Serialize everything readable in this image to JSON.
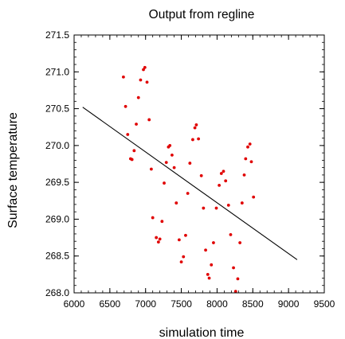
{
  "chart_data": {
    "type": "scatter",
    "title": "Output from regline",
    "xlabel": "simulation time",
    "ylabel": "Surface temperature",
    "xlim": [
      6000,
      9500
    ],
    "ylim": [
      268.0,
      271.5
    ],
    "x_ticks": [
      6000,
      6500,
      7000,
      7500,
      8000,
      8500,
      9000,
      9500
    ],
    "x_tick_labels": [
      "6000",
      "6500",
      "7000",
      "7500",
      "8000",
      "8500",
      "9000",
      "9500"
    ],
    "y_ticks": [
      268.0,
      268.5,
      269.0,
      269.5,
      270.0,
      270.5,
      271.0,
      271.5
    ],
    "y_tick_labels": [
      "268.0",
      "268.5",
      "269.0",
      "269.5",
      "270.0",
      "270.5",
      "271.0",
      "271.5"
    ],
    "grid": false,
    "marker_color": "#e00000",
    "line_color": "#000000",
    "points": [
      [
        6690,
        270.93
      ],
      [
        6720,
        270.53
      ],
      [
        6750,
        270.15
      ],
      [
        6790,
        269.82
      ],
      [
        6810,
        269.81
      ],
      [
        6840,
        269.93
      ],
      [
        6870,
        270.29
      ],
      [
        6900,
        270.65
      ],
      [
        6930,
        270.89
      ],
      [
        6970,
        271.03
      ],
      [
        6990,
        271.06
      ],
      [
        7020,
        270.86
      ],
      [
        7050,
        270.35
      ],
      [
        7080,
        269.68
      ],
      [
        7100,
        269.02
      ],
      [
        7150,
        268.75
      ],
      [
        7180,
        268.69
      ],
      [
        7200,
        268.73
      ],
      [
        7230,
        268.97
      ],
      [
        7260,
        269.49
      ],
      [
        7290,
        269.77
      ],
      [
        7320,
        269.98
      ],
      [
        7340,
        270.0
      ],
      [
        7370,
        269.87
      ],
      [
        7400,
        269.7
      ],
      [
        7430,
        269.22
      ],
      [
        7470,
        268.72
      ],
      [
        7500,
        268.42
      ],
      [
        7530,
        268.49
      ],
      [
        7560,
        268.78
      ],
      [
        7590,
        269.35
      ],
      [
        7620,
        269.76
      ],
      [
        7660,
        270.08
      ],
      [
        7690,
        270.24
      ],
      [
        7710,
        270.28
      ],
      [
        7740,
        270.09
      ],
      [
        7780,
        269.59
      ],
      [
        7810,
        269.15
      ],
      [
        7840,
        268.58
      ],
      [
        7870,
        268.25
      ],
      [
        7890,
        268.2
      ],
      [
        7920,
        268.38
      ],
      [
        7950,
        268.68
      ],
      [
        7990,
        269.15
      ],
      [
        8030,
        269.46
      ],
      [
        8060,
        269.62
      ],
      [
        8090,
        269.65
      ],
      [
        8120,
        269.52
      ],
      [
        8160,
        269.19
      ],
      [
        8190,
        268.79
      ],
      [
        8230,
        268.34
      ],
      [
        8260,
        268.02
      ],
      [
        8290,
        268.19
      ],
      [
        8320,
        268.68
      ],
      [
        8350,
        269.22
      ],
      [
        8380,
        269.6
      ],
      [
        8400,
        269.82
      ],
      [
        8430,
        269.98
      ],
      [
        8460,
        270.02
      ],
      [
        8480,
        269.78
      ],
      [
        8510,
        269.3
      ]
    ],
    "regression_line": {
      "x": [
        6120,
        9120
      ],
      "y": [
        270.52,
        268.45
      ]
    }
  }
}
